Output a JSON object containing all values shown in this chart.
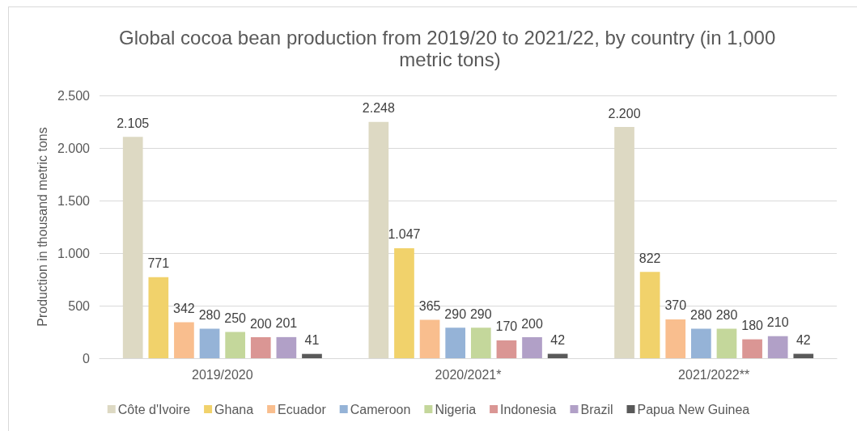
{
  "chart_data": {
    "type": "bar",
    "title": "Global cocoa bean production from 2019/20 to 2021/22, by country (in 1,000 metric tons)",
    "ylabel": "Production in thousand metric tons",
    "categories": [
      "2019/2020",
      "2020/2021*",
      "2021/2022**"
    ],
    "series": [
      {
        "name": "Côte d'Ivoire",
        "color": "#ddd9c3",
        "values": [
          2105,
          2248,
          2200
        ],
        "value_labels": [
          "2.105",
          "2.248",
          "2.200"
        ]
      },
      {
        "name": "Ghana",
        "color": "#f1d26b",
        "values": [
          771,
          1047,
          822
        ],
        "value_labels": [
          "771",
          "1.047",
          "822"
        ]
      },
      {
        "name": "Ecuador",
        "color": "#f9be8e",
        "values": [
          342,
          365,
          370
        ],
        "value_labels": [
          "342",
          "365",
          "370"
        ]
      },
      {
        "name": "Cameroon",
        "color": "#95b3d7",
        "values": [
          280,
          290,
          280
        ],
        "value_labels": [
          "280",
          "290",
          "280"
        ]
      },
      {
        "name": "Nigeria",
        "color": "#c4d79b",
        "values": [
          250,
          290,
          280
        ],
        "value_labels": [
          "250",
          "290",
          "280"
        ]
      },
      {
        "name": "Indonesia",
        "color": "#da9694",
        "values": [
          200,
          170,
          180
        ],
        "value_labels": [
          "200",
          "170",
          "180"
        ]
      },
      {
        "name": "Brazil",
        "color": "#b1a0c7",
        "values": [
          201,
          200,
          210
        ],
        "value_labels": [
          "201",
          "200",
          "210"
        ]
      },
      {
        "name": "Papua New Guinea",
        "color": "#595959",
        "values": [
          41,
          42,
          42
        ],
        "value_labels": [
          "41",
          "42",
          "42"
        ]
      }
    ],
    "ylim": [
      0,
      2500
    ],
    "yticks": [
      0,
      500,
      {
        "value": 1000,
        "label": "1.000"
      },
      {
        "value": 1500,
        "label": "1.500"
      },
      {
        "value": 2000,
        "label": "2.000"
      },
      {
        "value": 2500,
        "label": "2.500"
      }
    ],
    "grid": "y",
    "legend": "bottom"
  }
}
